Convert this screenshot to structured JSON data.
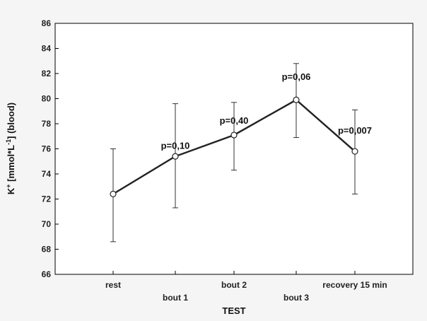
{
  "chart_data": {
    "type": "line",
    "xlabel": "TEST",
    "ylabel_main": "K",
    "ylabel_sup1": "+",
    "ylabel_unit": " [mmol*L",
    "ylabel_sup2": "-1",
    "ylabel_tail": "] (blood)",
    "ylim": [
      66,
      86
    ],
    "yticks": [
      66,
      68,
      70,
      72,
      74,
      76,
      78,
      80,
      82,
      84,
      86
    ],
    "grid": false,
    "categories": [
      "rest",
      "bout 1",
      "bout 2",
      "bout 3",
      "recovery 15 min"
    ],
    "category_label_row": [
      0,
      1,
      0,
      1,
      0
    ],
    "series": [
      {
        "values": [
          72.4,
          75.4,
          77.1,
          79.9,
          75.8
        ],
        "err_upper": [
          76.0,
          79.6,
          79.7,
          82.8,
          79.1
        ],
        "err_lower": [
          68.6,
          71.3,
          74.3,
          76.9,
          72.4
        ]
      }
    ],
    "annotations": [
      {
        "text": "p=0,10",
        "x_index": 1,
        "y": 76.0
      },
      {
        "text": "p=0,40",
        "x_index": 2,
        "y": 78.0
      },
      {
        "text": "p=0,06",
        "x_index": 3,
        "y": 81.5
      },
      {
        "text": "p=0,007",
        "x_index": 4,
        "y": 77.2
      }
    ]
  }
}
